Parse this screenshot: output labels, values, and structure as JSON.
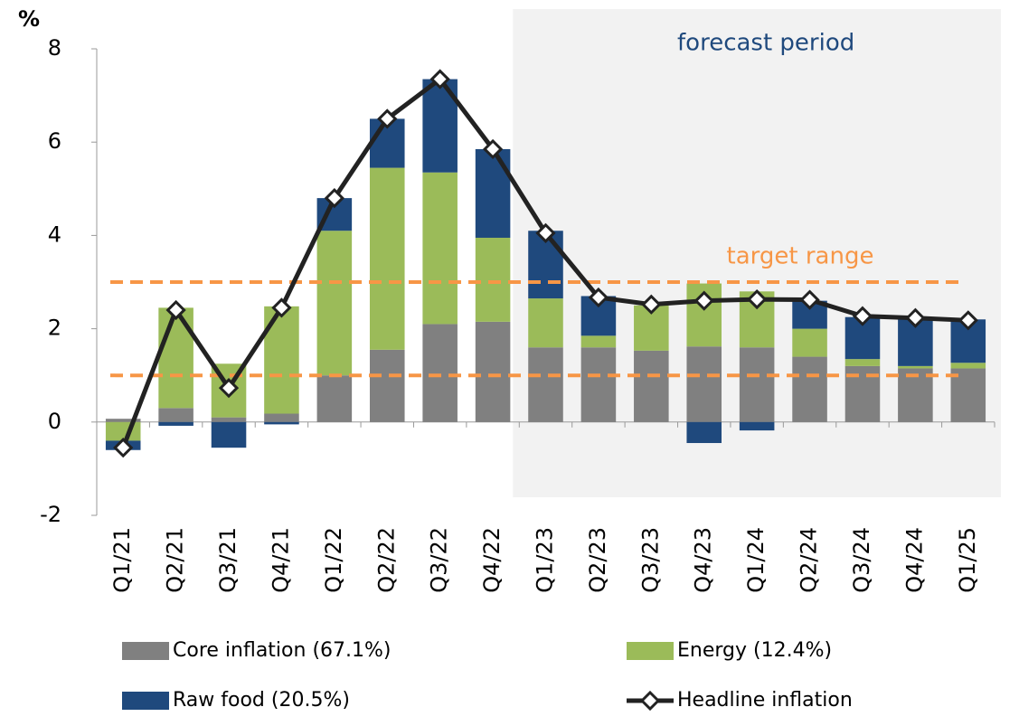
{
  "chart_data": {
    "type": "stacked_bar_line",
    "y_unit": "%",
    "categories": [
      "Q1/21",
      "Q2/21",
      "Q3/21",
      "Q4/21",
      "Q1/22",
      "Q2/22",
      "Q3/22",
      "Q4/22",
      "Q1/23",
      "Q2/23",
      "Q3/23",
      "Q4/23",
      "Q1/24",
      "Q2/24",
      "Q3/24",
      "Q4/24",
      "Q1/25"
    ],
    "series": [
      {
        "name": "Core inflation (67.1%)",
        "color": "#808080",
        "kind": "bar",
        "values": [
          0.07,
          0.3,
          0.1,
          0.18,
          1.0,
          1.55,
          2.1,
          2.15,
          1.6,
          1.6,
          1.53,
          1.62,
          1.6,
          1.4,
          1.2,
          1.15,
          1.15
        ]
      },
      {
        "name": "Energy (12.4%)",
        "color": "#9bbb59",
        "kind": "bar",
        "values": [
          -0.4,
          2.15,
          1.15,
          2.3,
          3.1,
          3.9,
          3.25,
          1.8,
          1.05,
          0.25,
          0.97,
          1.35,
          1.2,
          0.6,
          0.15,
          0.05,
          0.12
        ]
      },
      {
        "name": "Raw food (20.5%)",
        "color": "#1f497d",
        "kind": "bar",
        "values": [
          -0.2,
          -0.08,
          -0.55,
          -0.05,
          0.7,
          1.05,
          2.0,
          1.9,
          1.45,
          0.85,
          0,
          -0.45,
          -0.18,
          0.6,
          0.9,
          1.0,
          0.93
        ]
      },
      {
        "name": "Headline inflation",
        "color": "#222222",
        "kind": "line",
        "values": [
          -0.55,
          2.4,
          0.73,
          2.45,
          4.8,
          6.5,
          7.35,
          5.85,
          4.05,
          2.67,
          2.52,
          2.6,
          2.63,
          2.62,
          2.27,
          2.23,
          2.18
        ]
      }
    ],
    "annotations": [
      {
        "text": "forecast period",
        "start": "Q1/23"
      }
    ],
    "target_range": {
      "label": "target range",
      "values": [
        1,
        3
      ],
      "color": "#f79646"
    },
    "ylim": [
      -2,
      8
    ],
    "yticks": [
      -2,
      0,
      2,
      4,
      6,
      8
    ]
  }
}
